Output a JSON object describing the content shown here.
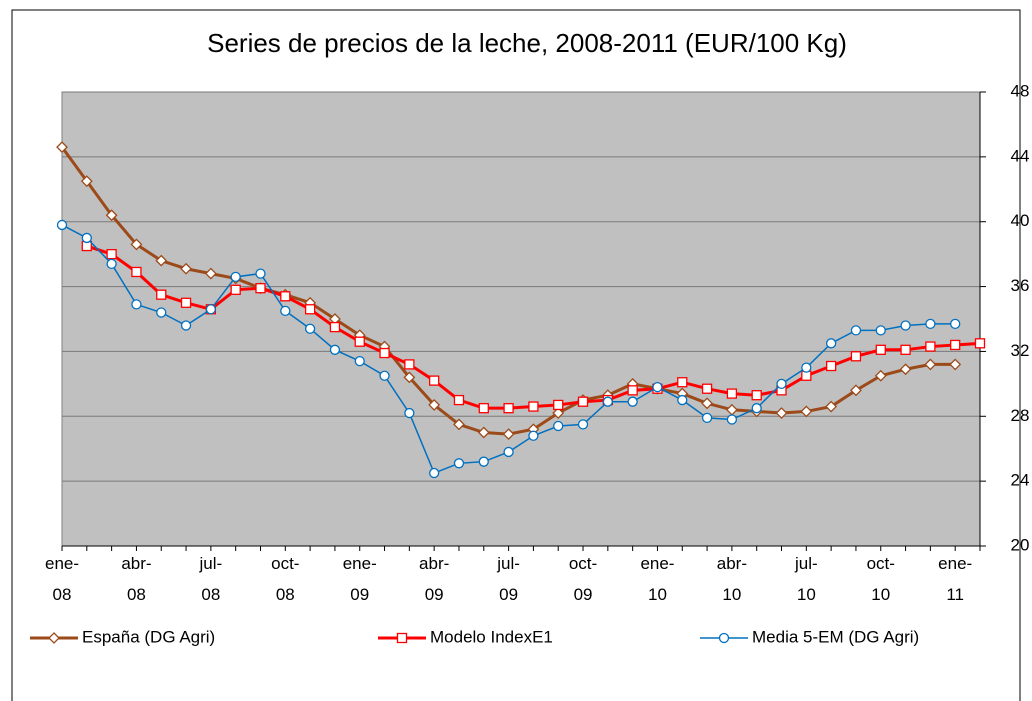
{
  "chart_data": {
    "type": "line",
    "title": "Series de precios de la leche, 2008-2011 (EUR/100 Kg)",
    "categories": [
      "ene-08",
      null,
      null,
      "abr-08",
      null,
      null,
      "jul-08",
      null,
      null,
      "oct-08",
      null,
      null,
      "ene-09",
      null,
      null,
      "abr-09",
      null,
      null,
      "jul-09",
      null,
      null,
      "oct-09",
      null,
      null,
      "ene-10",
      null,
      null,
      "abr-10",
      null,
      null,
      "jul-10",
      null,
      null,
      "oct-10",
      null,
      null,
      "ene-11",
      null
    ],
    "series": [
      {
        "name": "España (DG Agri)",
        "color": "#9c4a1a",
        "marker": "diamond",
        "values": [
          44.6,
          42.5,
          40.4,
          38.6,
          37.6,
          37.1,
          36.8,
          36.5,
          35.9,
          35.5,
          35.0,
          34.0,
          33.0,
          32.3,
          30.4,
          28.7,
          27.5,
          27.0,
          26.9,
          27.2,
          28.2,
          29.0,
          29.3,
          30.0,
          29.7,
          29.4,
          28.8,
          28.4,
          28.3,
          28.2,
          28.3,
          28.6,
          29.6,
          30.5,
          30.9,
          31.2,
          31.2,
          null
        ]
      },
      {
        "name": "Modelo IndexE1",
        "color": "#ff0000",
        "marker": "square",
        "values": [
          null,
          38.5,
          38.0,
          36.9,
          35.5,
          35.0,
          34.6,
          35.8,
          35.9,
          35.4,
          34.6,
          33.5,
          32.6,
          31.9,
          31.2,
          30.2,
          29.0,
          28.5,
          28.5,
          28.6,
          28.7,
          28.9,
          29.0,
          29.6,
          29.7,
          30.1,
          29.7,
          29.4,
          29.3,
          29.6,
          30.5,
          31.1,
          31.7,
          32.1,
          32.1,
          32.3,
          32.4,
          32.5
        ]
      },
      {
        "name": "Media 5-EM (DG Agri)",
        "color": "#0070c0",
        "marker": "circle",
        "values": [
          39.8,
          39.0,
          37.4,
          34.9,
          34.4,
          33.6,
          34.6,
          36.6,
          36.8,
          34.5,
          33.4,
          32.1,
          31.4,
          30.5,
          28.2,
          24.5,
          25.1,
          25.2,
          25.8,
          26.8,
          27.4,
          27.5,
          28.9,
          28.9,
          29.8,
          29.0,
          27.9,
          27.8,
          28.5,
          30.0,
          31.0,
          32.5,
          33.3,
          33.3,
          33.6,
          33.7,
          33.7,
          null
        ]
      }
    ],
    "ylim": [
      20,
      48
    ],
    "yticks": [
      20,
      24,
      28,
      32,
      36,
      40,
      44,
      48
    ],
    "y_axis_side": "right",
    "grid": true,
    "legend": "bottom",
    "plot_background": "#c0c0c0"
  }
}
